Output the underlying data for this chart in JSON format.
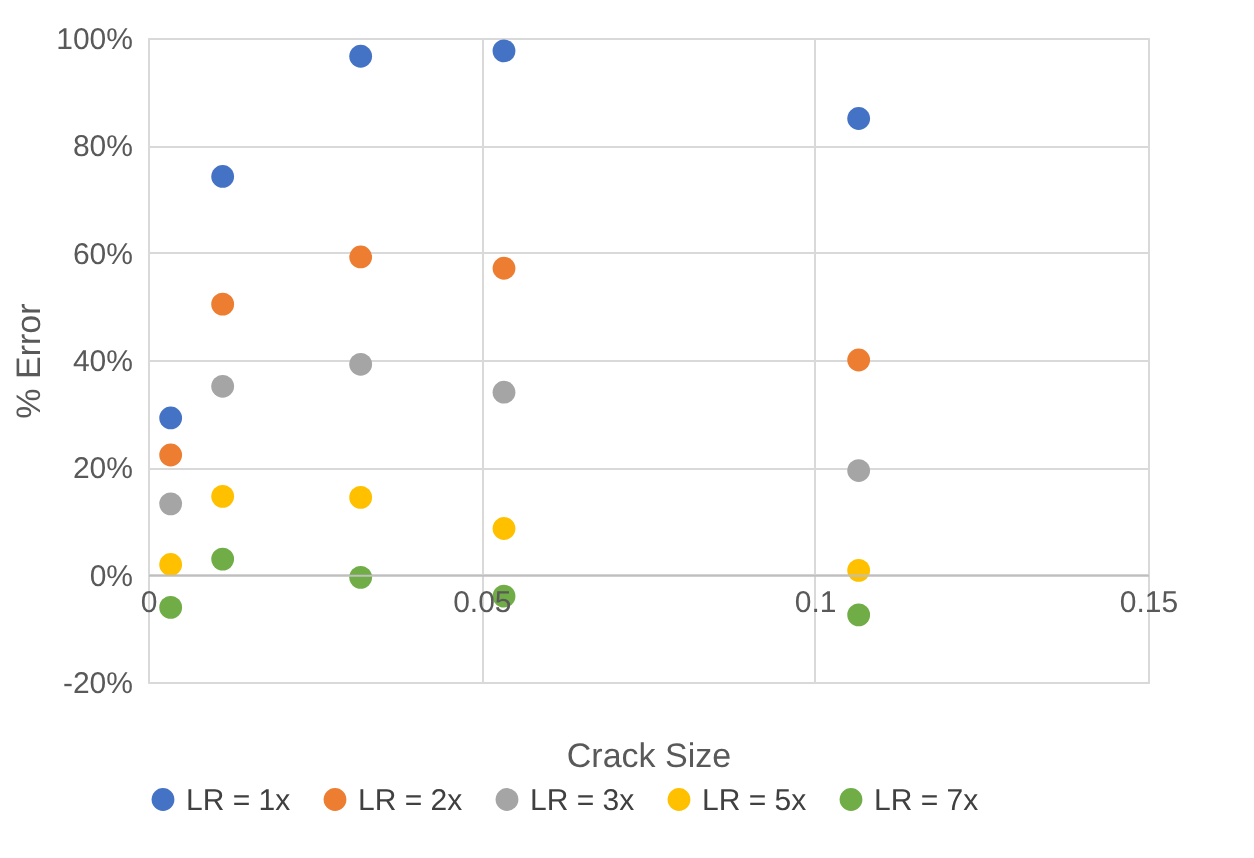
{
  "chart_data": {
    "type": "scatter",
    "xlabel": "Crack Size",
    "ylabel": "% Error",
    "x": [
      0.0034,
      0.0112,
      0.0319,
      0.0534,
      0.1066
    ],
    "series": [
      {
        "name": "LR = 1x",
        "color": "#4472c4",
        "values": [
          29.2,
          74.2,
          96.6,
          97.6,
          85.0
        ]
      },
      {
        "name": "LR = 2x",
        "color": "#ed7d31",
        "values": [
          22.3,
          50.4,
          59.2,
          57.1,
          40.0
        ]
      },
      {
        "name": "LR = 3x",
        "color": "#a5a5a5",
        "values": [
          13.2,
          35.1,
          39.2,
          34.0,
          19.4
        ]
      },
      {
        "name": "LR = 5x",
        "color": "#ffc000",
        "values": [
          1.9,
          14.6,
          14.4,
          8.6,
          0.8
        ]
      },
      {
        "name": "LR = 7x",
        "color": "#70ad47",
        "values": [
          -6.1,
          2.9,
          -0.5,
          -4.0,
          -7.5
        ]
      }
    ],
    "xlim": [
      0,
      0.15
    ],
    "xticks": [
      0,
      0.05,
      0.1,
      0.15
    ],
    "ylim": [
      -20,
      100
    ],
    "yticks": [
      {
        "value": -20,
        "label": "-20%"
      },
      {
        "value": 0,
        "label": "0%"
      },
      {
        "value": 20,
        "label": "20%"
      },
      {
        "value": 40,
        "label": "40%"
      },
      {
        "value": 60,
        "label": "60%"
      },
      {
        "value": 80,
        "label": "80%"
      },
      {
        "value": 100,
        "label": "100%"
      }
    ],
    "grid": true,
    "legend": "bottom",
    "marker": "circle"
  }
}
